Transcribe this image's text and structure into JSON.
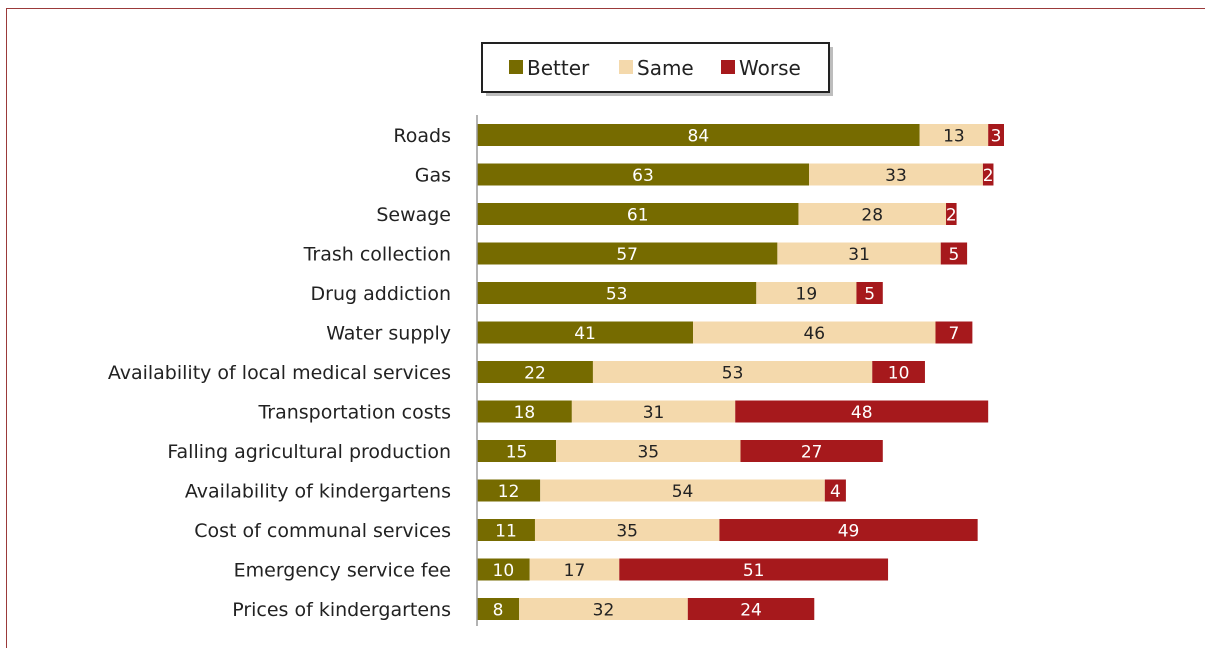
{
  "chart_data": {
    "type": "bar",
    "orientation": "horizontal",
    "stacked": true,
    "legend_position": "top",
    "grid": false,
    "xlim": [
      0,
      100
    ],
    "categories": [
      "Roads",
      "Gas",
      "Sewage",
      "Trash collection",
      "Drug addiction",
      "Water supply",
      "Availability of local medical services",
      "Transportation costs",
      "Falling agricultural production",
      "Availability of kindergartens",
      "Cost of communal services",
      "Emergency service fee",
      "Prices of kindergartens"
    ],
    "series": [
      {
        "name": "Better",
        "color": "#766b00",
        "label_color": "#ffffff",
        "values": [
          84,
          63,
          61,
          57,
          53,
          41,
          22,
          18,
          15,
          12,
          11,
          10,
          8
        ]
      },
      {
        "name": "Same",
        "color": "#f4d9ac",
        "label_color": "#222222",
        "values": [
          13,
          33,
          28,
          31,
          19,
          46,
          53,
          31,
          35,
          54,
          35,
          17,
          32
        ]
      },
      {
        "name": "Worse",
        "color": "#a6191c",
        "label_color": "#ffffff",
        "values": [
          3,
          2,
          2,
          5,
          5,
          7,
          10,
          48,
          27,
          4,
          49,
          51,
          24
        ]
      }
    ]
  }
}
